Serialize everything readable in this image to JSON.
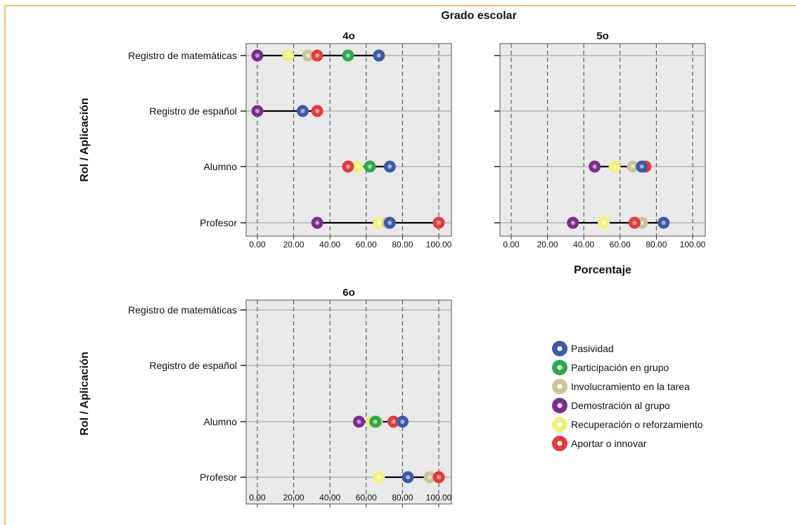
{
  "chart_data": {
    "type": "dot-range",
    "title": "Grado escolar",
    "xlabel": "Porcentaje",
    "ylabel": "Rol / Aplicación",
    "xlim": [
      0,
      100
    ],
    "x_ticks": [
      "0.00",
      "20.00",
      "40.00",
      "60.00",
      "80.00",
      "100.00"
    ],
    "grid": "vertical dashed at x ticks",
    "legend_position": "bottom-right",
    "categories": [
      "Registro de matemáticas",
      "Registro de español",
      "Alumno",
      "Profesor"
    ],
    "series": [
      {
        "name": "Pasividad",
        "color": "#3b5ba8"
      },
      {
        "name": "Participación en grupo",
        "color": "#2eaa4c"
      },
      {
        "name": "Involucramiento en la tarea",
        "color": "#c9c49a"
      },
      {
        "name": "Demostración al grupo",
        "color": "#7b2d8e"
      },
      {
        "name": "Recuperación o reforzamiento",
        "color": "#f2f07a"
      },
      {
        "name": "Aportar o innovar",
        "color": "#e8393a"
      }
    ],
    "panels": [
      {
        "title": "4o",
        "rows": [
          {
            "category": "Registro de matemáticas",
            "values": {
              "Pasividad": 67,
              "Participación en grupo": 50,
              "Involucramiento en la tarea": 28,
              "Demostración al grupo": 0,
              "Recuperación o reforzamiento": 17,
              "Aportar o innovar": 33
            }
          },
          {
            "category": "Registro de español",
            "values": {
              "Pasividad": 25,
              "Demostración al grupo": 0,
              "Aportar o innovar": 33
            }
          },
          {
            "category": "Alumno",
            "values": {
              "Pasividad": 73,
              "Participación en grupo": 62,
              "Involucramiento en la tarea": 62,
              "Recuperación o reforzamiento": 55,
              "Aportar o innovar": 50
            }
          },
          {
            "category": "Profesor",
            "values": {
              "Pasividad": 73,
              "Involucramiento en la tarea": 72,
              "Demostración al grupo": 33,
              "Recuperación o reforzamiento": 67,
              "Aportar o innovar": 100
            }
          }
        ]
      },
      {
        "title": "5o",
        "rows": [
          {
            "category": "Registro de matemáticas",
            "values": {}
          },
          {
            "category": "Registro de español",
            "values": {}
          },
          {
            "category": "Alumno",
            "values": {
              "Pasividad": 72,
              "Involucramiento en la tarea": 67,
              "Demostración al grupo": 46,
              "Recuperación o reforzamiento": 57,
              "Aportar o innovar": 74
            }
          },
          {
            "category": "Profesor",
            "values": {
              "Pasividad": 84,
              "Involucramiento en la tarea": 72,
              "Demostración al grupo": 34,
              "Recuperación o reforzamiento": 51,
              "Aportar o innovar": 68
            }
          }
        ]
      },
      {
        "title": "6o",
        "rows": [
          {
            "category": "Registro de matemáticas",
            "values": {}
          },
          {
            "category": "Registro de español",
            "values": {}
          },
          {
            "category": "Alumno",
            "values": {
              "Pasividad": 80,
              "Participación en grupo": 65,
              "Involucramiento en la tarea": 66,
              "Demostración al grupo": 56,
              "Recuperación o reforzamiento": 63,
              "Aportar o innovar": 75
            }
          },
          {
            "category": "Profesor",
            "values": {
              "Pasividad": 83,
              "Involucramiento en la tarea": 95,
              "Recuperación o reforzamiento": 67,
              "Aportar o innovar": 100
            }
          }
        ]
      }
    ]
  }
}
